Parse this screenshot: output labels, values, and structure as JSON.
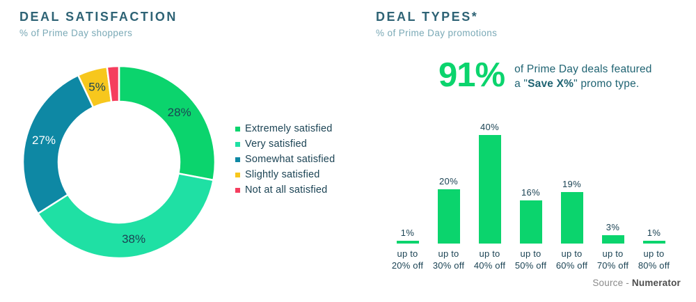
{
  "theme": {
    "green": "#0bd46d",
    "mint": "#1fe0a4",
    "teal": "#0e88a4",
    "yellow": "#f7c71d",
    "red": "#f53e5e",
    "title": "#2e6375",
    "subtitle": "#7aa9b6",
    "text": "#1b4354",
    "stat-text": "#1f6372",
    "src-gray": "#8a8a8a",
    "src-dark": "#4d4d4d"
  },
  "chart_data": [
    {
      "type": "pie",
      "variant": "donut",
      "title": "DEAL SATISFACTION",
      "subtitle": "% of Prime Day shoppers",
      "labels": [
        "Extremely satisfied",
        "Very satisfied",
        "Somewhat satisfied",
        "Slightly satisfied",
        "Not at all satisfied"
      ],
      "values": [
        28,
        38,
        27,
        5,
        2
      ],
      "colors": [
        "#0bd46d",
        "#1fe0a4",
        "#0e88a4",
        "#f7c71d",
        "#f53e5e"
      ],
      "slice_labels": [
        "28%",
        "38%",
        "27%",
        "5%",
        ""
      ],
      "slice_label_colors": [
        "#1b4354",
        "#1b4354",
        "#ffffff",
        "#1b4354",
        ""
      ],
      "start_angle_deg": 0,
      "direction": "clockwise",
      "legend_position": "right"
    },
    {
      "type": "bar",
      "title": "DEAL TYPES*",
      "subtitle": "% of Prime Day promotions",
      "categories": [
        [
          "up to",
          "20% off"
        ],
        [
          "up to",
          "30% off"
        ],
        [
          "up to",
          "40% off"
        ],
        [
          "up to",
          "50% off"
        ],
        [
          "up to",
          "60% off"
        ],
        [
          "up to",
          "70% off"
        ],
        [
          "up to",
          "80% off"
        ]
      ],
      "values": [
        1,
        20,
        40,
        16,
        19,
        3,
        1
      ],
      "value_labels": [
        "1%",
        "20%",
        "40%",
        "16%",
        "19%",
        "3%",
        "1%"
      ],
      "bar_color": "#0bd46d",
      "ylim": [
        0,
        45
      ],
      "grid": false,
      "annotation": {
        "big_value": "91%",
        "line1": "of Prime Day deals featured",
        "line2_prefix": "a \"",
        "line2_bold": "Save X%",
        "line2_suffix": "\" promo type."
      }
    }
  ],
  "footer": {
    "source_prefix": "Source - ",
    "source_name": "Numerator"
  }
}
